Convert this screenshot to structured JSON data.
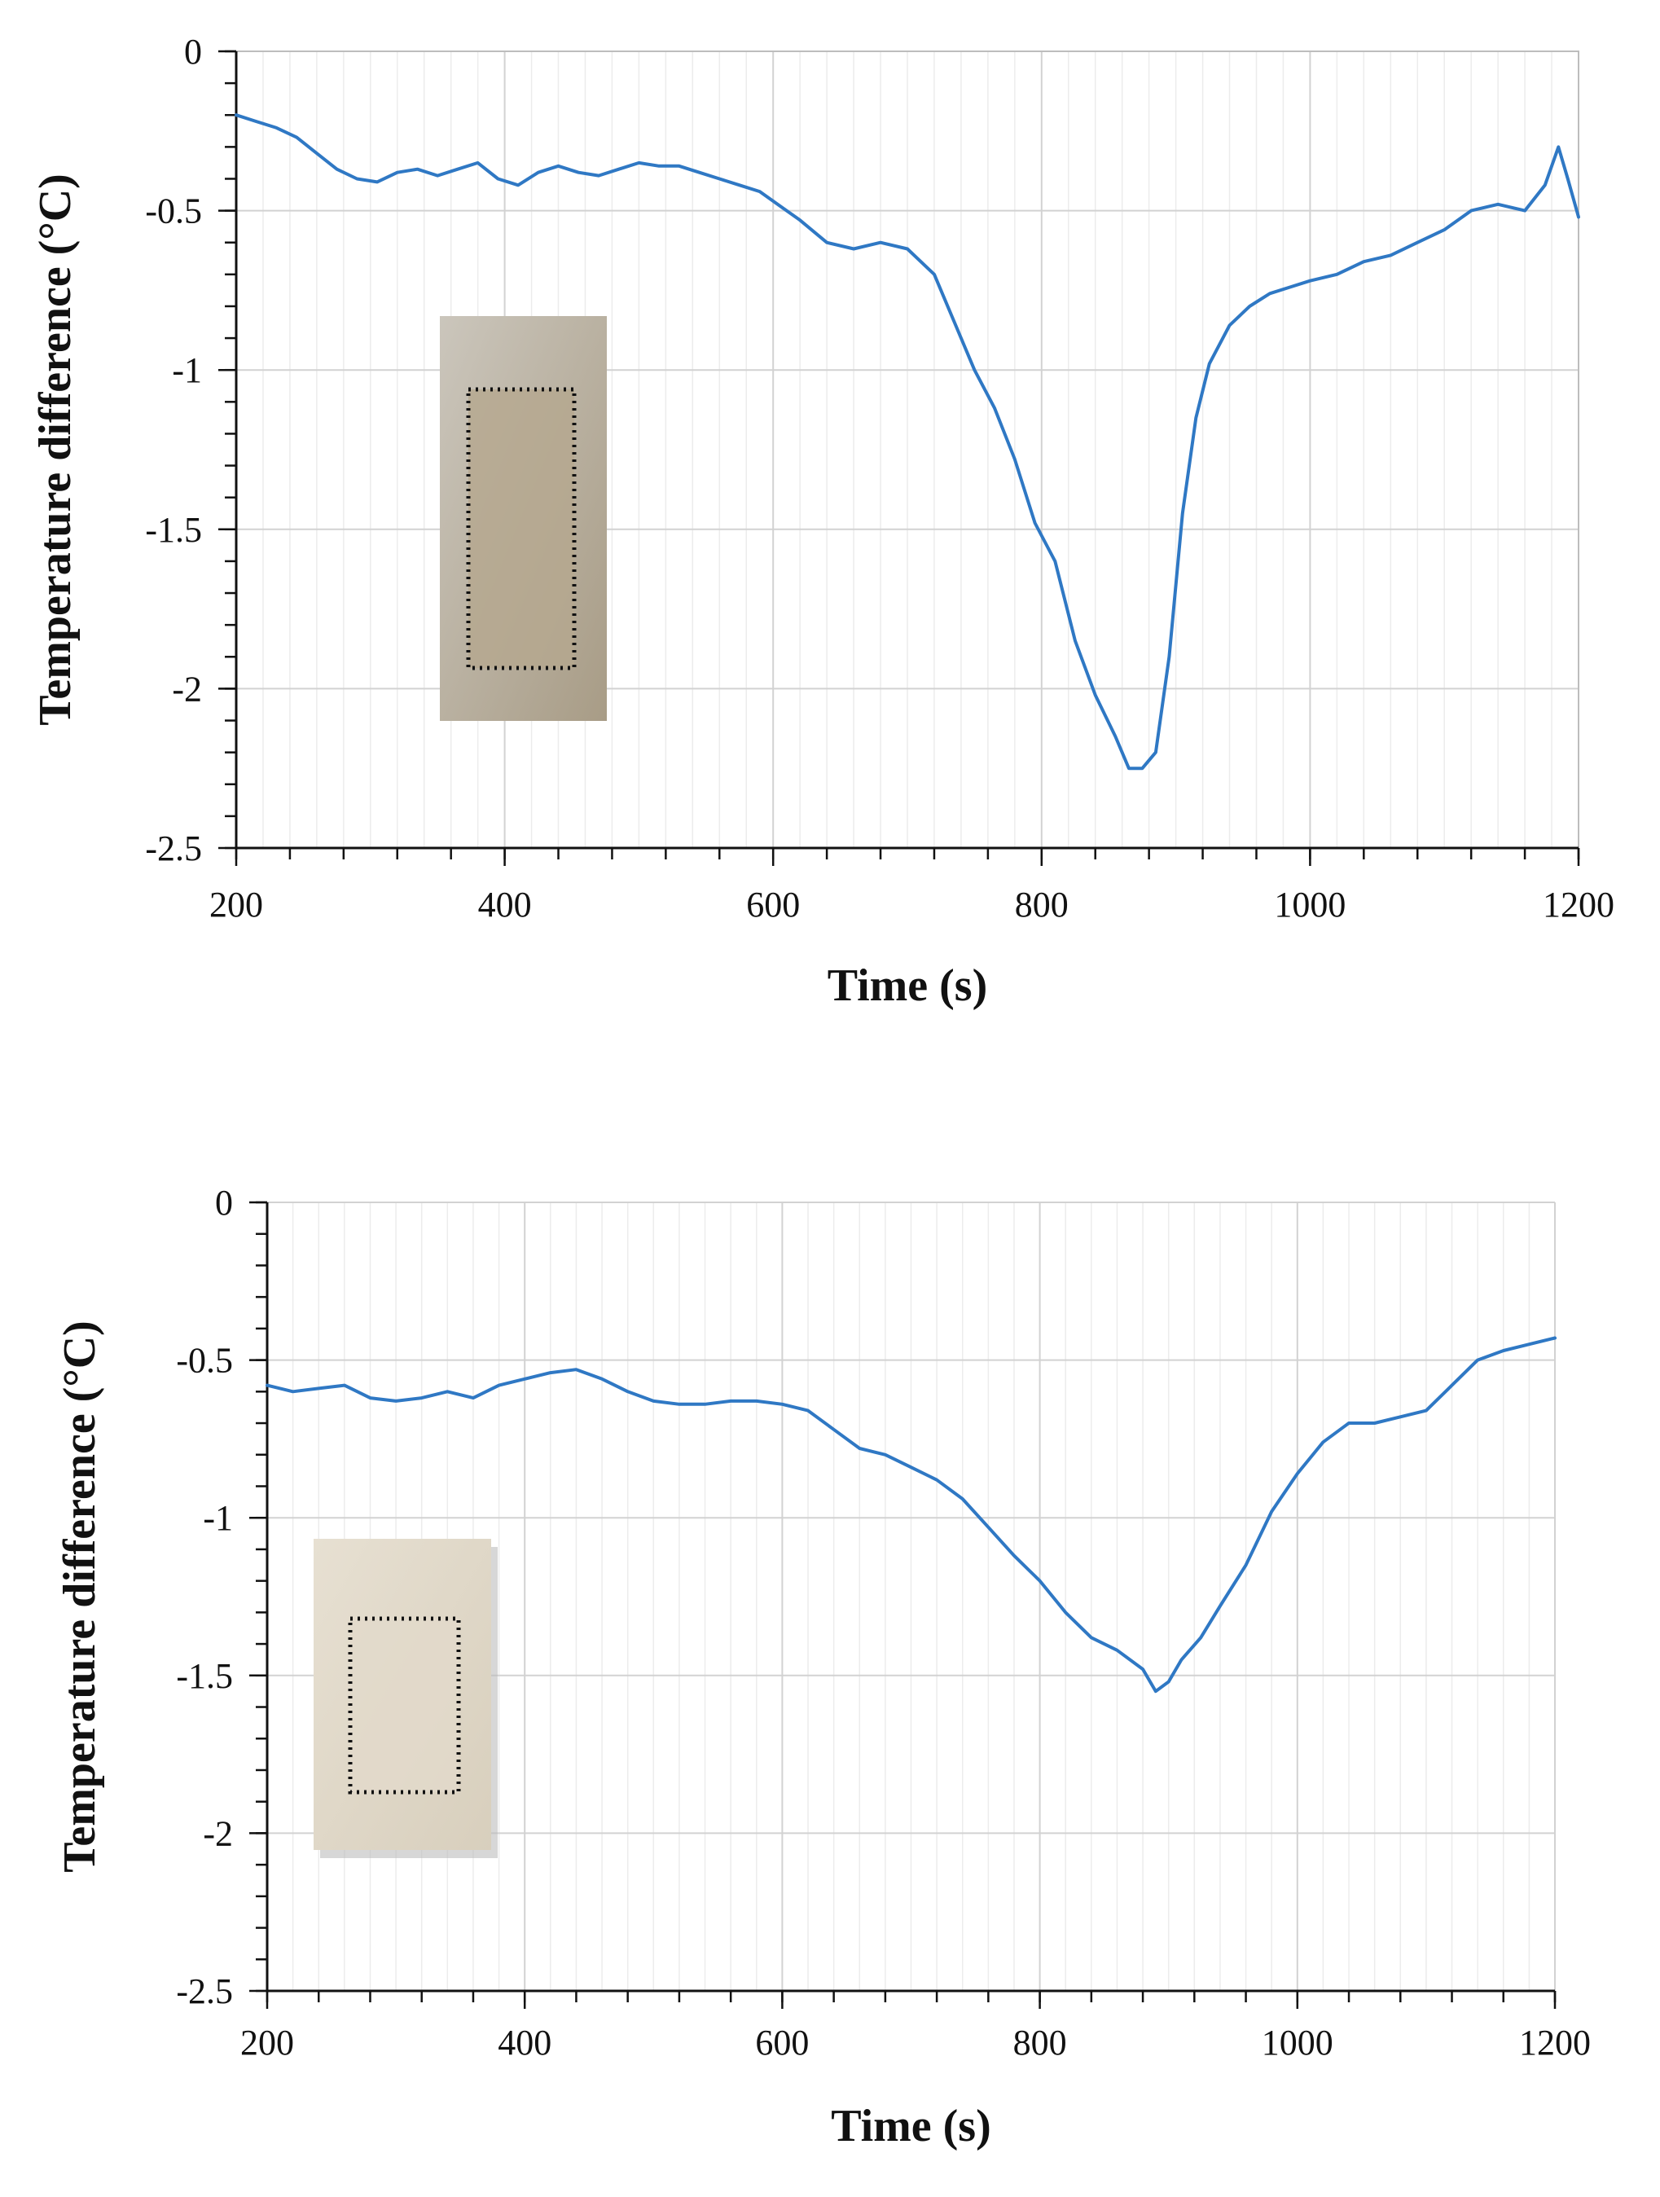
{
  "line_color": "#2f78c4",
  "chart_data": [
    {
      "type": "line",
      "title": "",
      "xlabel": "Time (s)",
      "ylabel": "Temperature difference (°C)",
      "xlim": [
        200,
        1200
      ],
      "ylim": [
        -2.5,
        0
      ],
      "xticks": [
        "200",
        "400",
        "600",
        "800",
        "1000",
        "1200"
      ],
      "yticks": [
        "0",
        "-0.5",
        "-1",
        "-1.5",
        "-2",
        "-2.5"
      ],
      "grid": true,
      "inset_photo": "metallic-sample-photo",
      "series": [
        {
          "x": [
            200,
            215,
            230,
            245,
            260,
            275,
            290,
            305,
            320,
            335,
            350,
            365,
            380,
            395,
            410,
            425,
            440,
            455,
            470,
            485,
            500,
            515,
            530,
            545,
            560,
            575,
            590,
            600,
            620,
            640,
            660,
            680,
            700,
            720,
            735,
            750,
            765,
            780,
            795,
            810,
            825,
            840,
            855,
            865,
            875,
            885,
            895,
            905,
            915,
            925,
            940,
            955,
            970,
            985,
            1000,
            1020,
            1040,
            1060,
            1080,
            1100,
            1120,
            1140,
            1160,
            1175,
            1185,
            1192,
            1200
          ],
          "y": [
            -0.2,
            -0.22,
            -0.24,
            -0.27,
            -0.32,
            -0.37,
            -0.4,
            -0.41,
            -0.38,
            -0.37,
            -0.39,
            -0.37,
            -0.35,
            -0.4,
            -0.42,
            -0.38,
            -0.36,
            -0.38,
            -0.39,
            -0.37,
            -0.35,
            -0.36,
            -0.36,
            -0.38,
            -0.4,
            -0.42,
            -0.44,
            -0.47,
            -0.53,
            -0.6,
            -0.62,
            -0.6,
            -0.62,
            -0.7,
            -0.85,
            -1.0,
            -1.12,
            -1.28,
            -1.48,
            -1.6,
            -1.85,
            -2.02,
            -2.15,
            -2.25,
            -2.25,
            -2.2,
            -1.9,
            -1.45,
            -1.15,
            -0.98,
            -0.86,
            -0.8,
            -0.76,
            -0.74,
            -0.72,
            -0.7,
            -0.66,
            -0.64,
            -0.6,
            -0.56,
            -0.5,
            -0.48,
            -0.5,
            -0.42,
            -0.3,
            -0.4,
            -0.52
          ]
        }
      ]
    },
    {
      "type": "line",
      "title": "",
      "xlabel": "Time (s)",
      "ylabel": "Temperature difference (°C)",
      "xlim": [
        200,
        1200
      ],
      "ylim": [
        -2.5,
        0
      ],
      "xticks": [
        "200",
        "400",
        "600",
        "800",
        "1000",
        "1200"
      ],
      "yticks": [
        "0",
        "-0.5",
        "-1",
        "-1.5",
        "-2",
        "-2.5"
      ],
      "grid": true,
      "inset_photo": "paper-sample-photo",
      "series": [
        {
          "x": [
            200,
            220,
            240,
            260,
            280,
            300,
            320,
            340,
            360,
            380,
            400,
            420,
            440,
            460,
            480,
            500,
            520,
            540,
            560,
            580,
            600,
            620,
            640,
            660,
            680,
            700,
            720,
            740,
            760,
            780,
            800,
            820,
            840,
            860,
            880,
            890,
            900,
            910,
            925,
            940,
            960,
            980,
            1000,
            1020,
            1040,
            1060,
            1080,
            1100,
            1120,
            1140,
            1160,
            1180,
            1200
          ],
          "y": [
            -0.58,
            -0.6,
            -0.59,
            -0.58,
            -0.62,
            -0.63,
            -0.62,
            -0.6,
            -0.62,
            -0.58,
            -0.56,
            -0.54,
            -0.53,
            -0.56,
            -0.6,
            -0.63,
            -0.64,
            -0.64,
            -0.63,
            -0.63,
            -0.64,
            -0.66,
            -0.72,
            -0.78,
            -0.8,
            -0.84,
            -0.88,
            -0.94,
            -1.03,
            -1.12,
            -1.2,
            -1.3,
            -1.38,
            -1.42,
            -1.48,
            -1.55,
            -1.52,
            -1.45,
            -1.38,
            -1.28,
            -1.15,
            -0.98,
            -0.86,
            -0.76,
            -0.7,
            -0.7,
            -0.68,
            -0.66,
            -0.58,
            -0.5,
            -0.47,
            -0.45,
            -0.43
          ]
        }
      ]
    }
  ]
}
